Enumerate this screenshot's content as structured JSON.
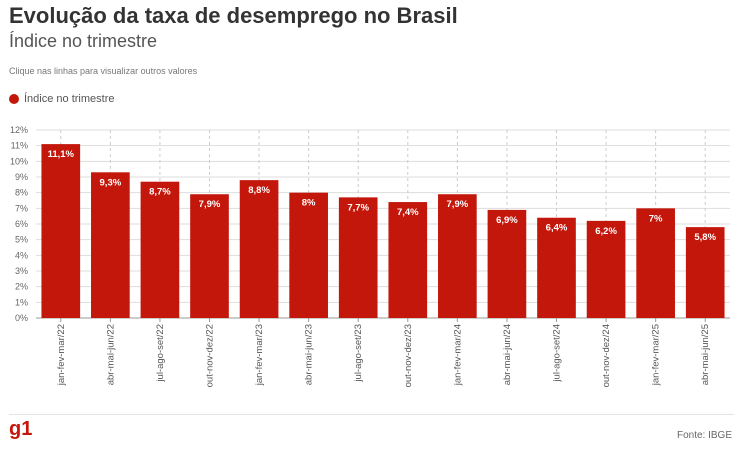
{
  "header": {
    "title": "Evolução da taxa de desemprego no Brasil",
    "subtitle": "Índice no trimestre",
    "note": "Clique nas linhas para visualizar outros valores"
  },
  "legend": {
    "label": "Índice no trimestre"
  },
  "footer": {
    "logo": "g1",
    "source": "Fonte: IBGE"
  },
  "colors": {
    "bar": "#c4170c",
    "grid": "#dddddd"
  },
  "chart_data": {
    "type": "bar",
    "title": "Evolução da taxa de desemprego no Brasil",
    "subtitle": "Índice no trimestre",
    "xlabel": "",
    "ylabel": "",
    "ylim": [
      0,
      12
    ],
    "yticks": [
      "0%",
      "1%",
      "2%",
      "3%",
      "4%",
      "5%",
      "6%",
      "7%",
      "8%",
      "9%",
      "10%",
      "11%",
      "12%"
    ],
    "categories": [
      "jan-fev-mar/22",
      "abr-mai-jun/22",
      "jul-ago-set/22",
      "out-nov-dez/22",
      "jan-fev-mar/23",
      "abr-mai-jun/23",
      "jul-ago-set/23",
      "out-nov-dez/23",
      "jan-fev-mar/24",
      "abr-mai-jun/24",
      "jul-ago-set/24",
      "out-nov-dez/24",
      "jan-fev-mar/25",
      "abr-mai-jun/25"
    ],
    "values": [
      11.1,
      9.3,
      8.7,
      7.9,
      8.8,
      8.0,
      7.7,
      7.4,
      7.9,
      6.9,
      6.4,
      6.2,
      7.0,
      5.8
    ],
    "labels": [
      "11,1%",
      "9,3%",
      "8,7%",
      "7,9%",
      "8,8%",
      "8%",
      "7,7%",
      "7,4%",
      "7,9%",
      "6,9%",
      "6,4%",
      "6,2%",
      "7%",
      "5,8%"
    ],
    "series": [
      {
        "name": "Índice no trimestre"
      }
    ]
  }
}
